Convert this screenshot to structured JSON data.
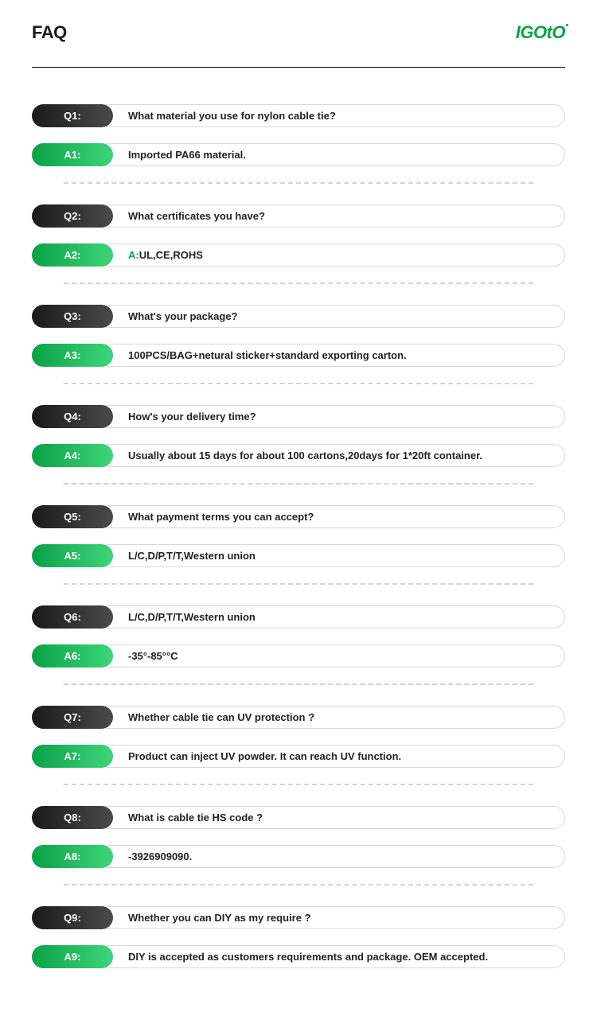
{
  "page": {
    "title": "FAQ",
    "logo": "IGOtO"
  },
  "styling": {
    "q_pill_gradient": [
      "#1a1a1a",
      "#4a4a4a"
    ],
    "a_pill_gradient": [
      "#0aa247",
      "#3ed47a"
    ],
    "accent_color": "#0aa247",
    "border_color": "#d9d9d9",
    "divider_color": "#d4d4d4",
    "text_color": "#222222",
    "background": "#ffffff",
    "font_size_label": 13,
    "font_size_body": 13,
    "pill_height": 29,
    "pill_width": 102,
    "border_radius": 15
  },
  "faq": [
    {
      "q_label": "Q1:",
      "q_text": "What material you use for nylon cable tie?",
      "a_label": "A1:",
      "a_text": "Imported PA66 material.",
      "a_prefix": ""
    },
    {
      "q_label": "Q2:",
      "q_text": "What certificates you have?",
      "a_label": "A2:",
      "a_text": "UL,CE,ROHS",
      "a_prefix": "A:"
    },
    {
      "q_label": "Q3:",
      "q_text": "What's your package?",
      "a_label": "A3:",
      "a_text": "100PCS/BAG+netural sticker+standard exporting carton.",
      "a_prefix": ""
    },
    {
      "q_label": "Q4:",
      "q_text": "How's your delivery time?",
      "a_label": "A4:",
      "a_text": "Usually about 15 days for about 100 cartons,20days for 1*20ft container.",
      "a_prefix": ""
    },
    {
      "q_label": "Q5:",
      "q_text": "What payment terms you can accept?",
      "a_label": "A5:",
      "a_text": "L/C,D/P,T/T,Western union",
      "a_prefix": ""
    },
    {
      "q_label": "Q6:",
      "q_text": "L/C,D/P,T/T,Western union",
      "a_label": "A6:",
      "a_text": "-35°-85°°C",
      "a_prefix": ""
    },
    {
      "q_label": "Q7:",
      "q_text": "Whether cable tie can UV protection ?",
      "a_label": "A7:",
      "a_text": "Product can inject UV powder. It can reach UV function.",
      "a_prefix": ""
    },
    {
      "q_label": "Q8:",
      "q_text": "What is cable tie HS code ?",
      "a_label": "A8:",
      "a_text": "-3926909090.",
      "a_prefix": ""
    },
    {
      "q_label": "Q9:",
      "q_text": "Whether you can DIY as my require ?",
      "a_label": "A9:",
      "a_text": "DIY is accepted as customers requirements and package.  OEM accepted.",
      "a_prefix": ""
    }
  ]
}
